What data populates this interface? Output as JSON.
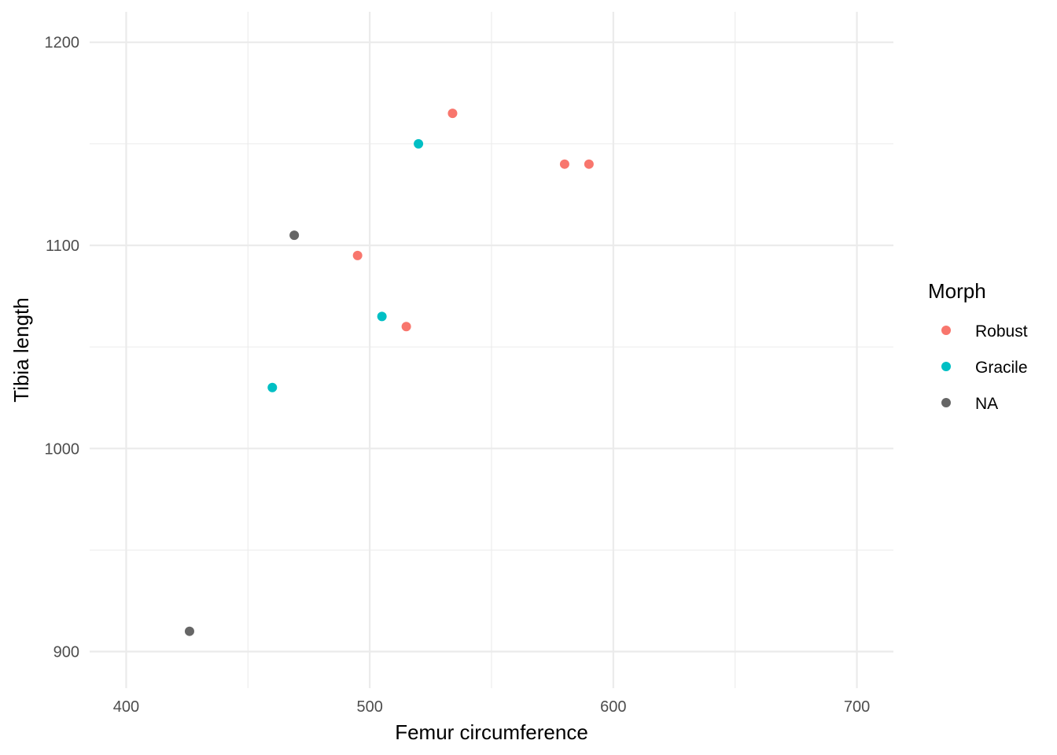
{
  "chart_data": {
    "type": "scatter",
    "title": "",
    "xlabel": "Femur circumference",
    "ylabel": "Tibia length",
    "xlim": [
      385,
      715
    ],
    "ylim": [
      882,
      1215
    ],
    "x_ticks": [
      400,
      500,
      600,
      700
    ],
    "x_minor": [
      450,
      550,
      650
    ],
    "y_ticks": [
      900,
      1000,
      1100,
      1200
    ],
    "y_minor": [
      950,
      1050,
      1150
    ],
    "grid": true,
    "legend": {
      "title": "Morph",
      "position": "right"
    },
    "series": [
      {
        "name": "Robust",
        "color": "#F8766D",
        "points": [
          {
            "x": 534,
            "y": 1165
          },
          {
            "x": 580,
            "y": 1140
          },
          {
            "x": 590,
            "y": 1140
          },
          {
            "x": 495,
            "y": 1095
          },
          {
            "x": 515,
            "y": 1060
          }
        ]
      },
      {
        "name": "Gracile",
        "color": "#00BFC4",
        "points": [
          {
            "x": 520,
            "y": 1150
          },
          {
            "x": 505,
            "y": 1065
          },
          {
            "x": 460,
            "y": 1030
          }
        ]
      },
      {
        "name": "NA",
        "color": "#666666",
        "points": [
          {
            "x": 469,
            "y": 1105
          },
          {
            "x": 426,
            "y": 910
          }
        ]
      }
    ]
  }
}
